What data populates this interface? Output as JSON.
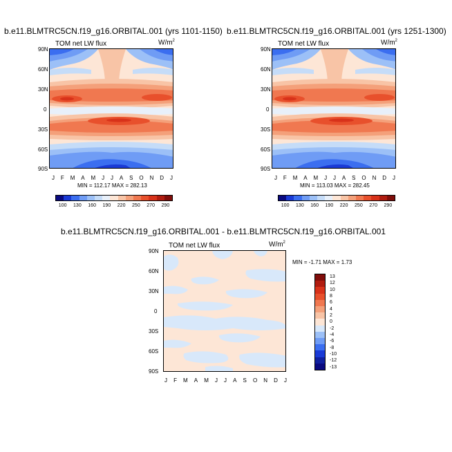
{
  "chart_data": [
    {
      "type": "heatmap",
      "title": "b.e11.BLMTRC5CN.f19_g16.ORBITAL.001 (yrs 1101-1150)",
      "left_label": "TOM net LW flux",
      "right_label": "W/m",
      "right_label_sup": "2",
      "x_ticks": [
        "J",
        "F",
        "M",
        "A",
        "M",
        "J",
        "J",
        "A",
        "S",
        "O",
        "N",
        "D",
        "J"
      ],
      "y_ticks": [
        "90N",
        "60N",
        "30N",
        "0",
        "30S",
        "60S",
        "90S"
      ],
      "min_max": "MIN = 112.17 MAX = 282.13",
      "colorbar_labels": [
        "100",
        "130",
        "160",
        "190",
        "220",
        "250",
        "270",
        "290"
      ]
    },
    {
      "type": "heatmap",
      "title": "b.e11.BLMTRC5CN.f19_g16.ORBITAL.001 (yrs 1251-1300)",
      "left_label": "TOM net LW flux",
      "right_label": "W/m",
      "right_label_sup": "2",
      "x_ticks": [
        "J",
        "F",
        "M",
        "A",
        "M",
        "J",
        "J",
        "A",
        "S",
        "O",
        "N",
        "D",
        "J"
      ],
      "y_ticks": [
        "90N",
        "60N",
        "30N",
        "0",
        "30S",
        "60S",
        "90S"
      ],
      "min_max": "MIN = 113.03 MAX = 282.45",
      "colorbar_labels": [
        "100",
        "130",
        "160",
        "190",
        "220",
        "250",
        "270",
        "290"
      ]
    },
    {
      "type": "heatmap",
      "title": "b.e11.BLMTRC5CN.f19_g16.ORBITAL.001 - b.e11.BLMTRC5CN.f19_g16.ORBITAL.001",
      "left_label": "TOM net LW flux",
      "right_label": "W/m",
      "right_label_sup": "2",
      "x_ticks": [
        "J",
        "F",
        "M",
        "A",
        "M",
        "J",
        "J",
        "A",
        "S",
        "O",
        "N",
        "D",
        "J"
      ],
      "y_ticks": [
        "90N",
        "60N",
        "30N",
        "0",
        "30S",
        "60S",
        "90S"
      ],
      "min_max": "MIN = -1.71 MAX =  1.73",
      "colorbar_labels": [
        "13",
        "12",
        "10",
        "8",
        "6",
        "4",
        "2",
        "0",
        "-2",
        "-4",
        "-6",
        "-8",
        "-10",
        "-12",
        "-13"
      ]
    }
  ],
  "colors": {
    "abs_scale": [
      "#0a0a80",
      "#1a3ad6",
      "#3b6ef0",
      "#6f9cf5",
      "#9cc0f7",
      "#c5dcf8",
      "#e8f0fa",
      "#fde6d6",
      "#f8c4a6",
      "#f4a07a",
      "#f07850",
      "#e8502c",
      "#d8321a",
      "#b01c10",
      "#800d0a"
    ],
    "diff_scale": [
      "#800d0a",
      "#b01c10",
      "#d8321a",
      "#e8502c",
      "#f07850",
      "#f4a07a",
      "#f8c4a6",
      "#fde6d6",
      "#d8e8fa",
      "#9cc0f7",
      "#6f9cf5",
      "#3b6ef0",
      "#1a3ad6",
      "#1020a0",
      "#0a0a80"
    ]
  }
}
